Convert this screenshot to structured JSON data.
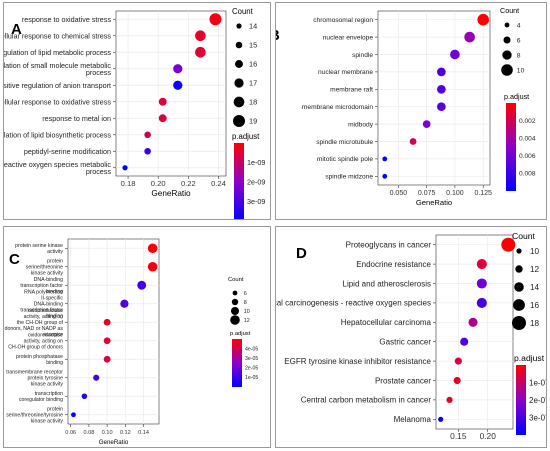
{
  "colors": {
    "high": "#ff0000",
    "low": "#0000ff",
    "gridline": "#ebebeb",
    "panel_bg": "#ffffff"
  },
  "chart_data": [
    {
      "panel": "A",
      "type": "scatter",
      "categories": [
        "response to oxidative stress",
        "cellular response to chemical stress",
        "regulation of lipid metabolic process",
        "regulation of small molecule metabolic process",
        "positive regulation of anion transport",
        "cellular response to oxidative stress",
        "response to metal ion",
        "regulation of lipid biosynthetic process",
        "peptidyl-serine modification",
        "reactive oxygen species metabolic process"
      ],
      "x": [
        0.238,
        0.228,
        0.228,
        0.213,
        0.213,
        0.203,
        0.203,
        0.193,
        0.193,
        0.178
      ],
      "count": [
        19,
        18,
        18,
        17,
        17,
        16,
        16,
        15,
        15,
        14
      ],
      "p_adjust_frac": [
        0.05,
        0.1,
        0.12,
        0.55,
        0.95,
        0.15,
        0.15,
        0.2,
        0.8,
        1.0
      ],
      "xlabel": "GeneRatio",
      "xticks": [
        "0.18",
        "0.20",
        "0.22",
        "0.24"
      ],
      "xlim": [
        0.172,
        0.245
      ],
      "size_legend_title": "Count",
      "size_legend_values": [
        "14",
        "15",
        "16",
        "17",
        "18",
        "19"
      ],
      "color_legend_title": "p.adjust",
      "color_legend_ticks": [
        "1e-09",
        "2e-09",
        "3e-09"
      ]
    },
    {
      "panel": "B",
      "type": "scatter",
      "categories": [
        "chromosomal region",
        "nuclear envelope",
        "spindle",
        "nuclear membrane",
        "membrane raft",
        "membrane microdomain",
        "midbody",
        "spindle microtubule",
        "mitotic spindle pole",
        "spindle midzone"
      ],
      "x": [
        0.125,
        0.113,
        0.1,
        0.088,
        0.088,
        0.088,
        0.075,
        0.063,
        0.038,
        0.038
      ],
      "count": [
        10,
        9,
        8,
        7,
        7,
        7,
        6,
        5,
        3,
        3
      ],
      "p_adjust_frac": [
        0.0,
        0.45,
        0.6,
        0.72,
        0.72,
        0.7,
        0.55,
        0.2,
        0.95,
        1.0
      ],
      "xlabel": "GeneRatio",
      "xticks": [
        "0.050",
        "0.075",
        "0.100",
        "0.125"
      ],
      "xlim": [
        0.032,
        0.131
      ],
      "size_legend_title": "Count",
      "size_legend_values": [
        "4",
        "6",
        "8",
        "10"
      ],
      "color_legend_title": "p.adjust",
      "color_legend_ticks": [
        "0.002",
        "0.004",
        "0.006",
        "0.008"
      ]
    },
    {
      "panel": "C",
      "type": "scatter",
      "categories": [
        "protein serine kinase activity",
        "protein serine/threonine kinase activity",
        "DNA-binding transcription factor binding",
        "RNA polymerase II-specific DNA-binding transcription factor binding",
        "oxidoreductase activity, acting on the CH-OH group of donors, NAD or NADP as acceptor",
        "oxidoreductase activity, acting on CH-OH group of donors",
        "protein phosphatase binding",
        "transmembrane receptor protein tyrosine kinase activity",
        "transcription coregulator binding",
        "protein serine/threonine/tyrosine kinase activity"
      ],
      "x": [
        0.15,
        0.15,
        0.138,
        0.119,
        0.1,
        0.1,
        0.1,
        0.088,
        0.075,
        0.063
      ],
      "count": [
        12,
        12,
        11,
        10,
        8,
        8,
        8,
        7,
        6,
        5
      ],
      "p_adjust_frac": [
        0.02,
        0.04,
        0.75,
        0.7,
        0.1,
        0.12,
        0.15,
        0.75,
        0.92,
        1.0
      ],
      "xlabel": "GeneRatio",
      "xticks": [
        "0.06",
        "0.08",
        "0.10",
        "0.12",
        "0.14"
      ],
      "xlim": [
        0.057,
        0.157
      ],
      "size_legend_title": "Count",
      "size_legend_values": [
        "6",
        "8",
        "10",
        "12"
      ],
      "color_legend_title": "p.adjust",
      "color_legend_ticks": [
        "4e-05",
        "3e-05",
        "2e-05",
        "1e-05"
      ]
    },
    {
      "panel": "D",
      "type": "scatter",
      "categories": [
        "Proteoglycans in cancer",
        "Endocrine resistance",
        "Lipid and atherosclerosis",
        "Chemical carcinogenesis - reactive oxygen species",
        "Hepatocellular carcinoma",
        "Gastric cancer",
        "EGFR tyrosine kinase inhibitor resistance",
        "Prostate cancer",
        "Central carbon metabolism in cancer",
        "Melanoma"
      ],
      "x": [
        0.235,
        0.19,
        0.19,
        0.19,
        0.175,
        0.16,
        0.15,
        0.148,
        0.135,
        0.12
      ],
      "count": [
        19,
        15,
        15,
        15,
        14,
        13,
        12,
        12,
        11,
        10
      ],
      "p_adjust_frac": [
        0.0,
        0.15,
        0.6,
        0.75,
        0.35,
        0.7,
        0.15,
        0.1,
        0.1,
        1.0
      ],
      "xlabel": "",
      "xticks": [
        "0.15",
        "0.20"
      ],
      "xlim": [
        0.112,
        0.243
      ],
      "size_legend_title": "Count",
      "size_legend_values": [
        "10",
        "12",
        "14",
        "16",
        "18"
      ],
      "color_legend_title": "p.adjust",
      "color_legend_ticks": [
        "1e-07",
        "2e-07",
        "3e-07"
      ]
    }
  ]
}
